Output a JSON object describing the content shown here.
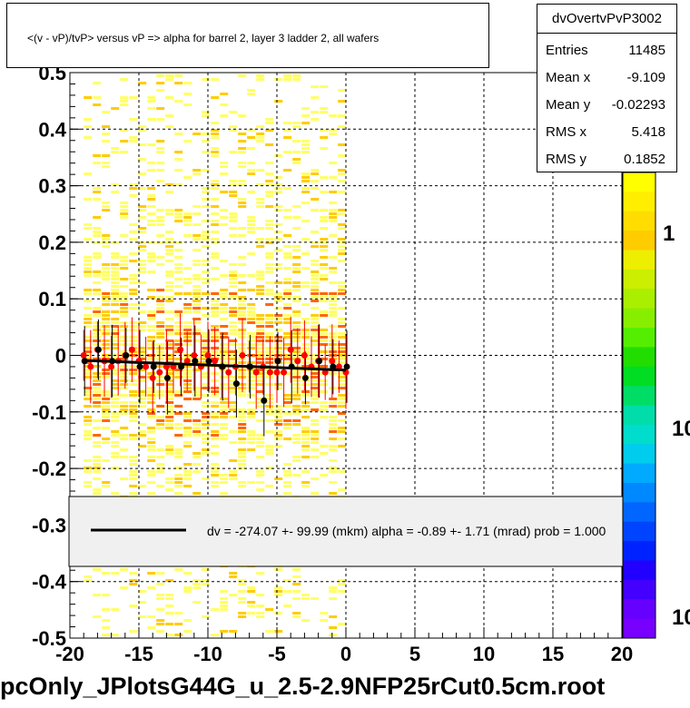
{
  "title": "<(v - vP)/tvP> versus   vP => alpha for barrel 2, layer 3 ladder 2, all wafers",
  "footer_title": "pcOnly_JPlotsG44G_u_2.5-2.9NFP25rCut0.5cm.root",
  "stats": {
    "name": "dvOvertvPvP3002",
    "rows": [
      {
        "key": "Entries",
        "value": "11485"
      },
      {
        "key": "Mean x",
        "value": "-9.109"
      },
      {
        "key": "Mean y",
        "value": "-0.02293"
      },
      {
        "key": "RMS x",
        "value": "5.418"
      },
      {
        "key": "RMS y",
        "value": "0.1852"
      }
    ]
  },
  "legend": {
    "text": "dv = -274.07 +- 99.99 (mkm) alpha =   -0.89 +-   1.71 (mrad) prob = 1.000"
  },
  "colors": {
    "heat_low": "#ffff66",
    "heat_mid": "#ffcc00",
    "heat_high": "#ff6600",
    "red_markers": "#ff0000",
    "black_markers": "#000000",
    "fit_line": "#000000"
  },
  "chart_data": {
    "type": "scatter",
    "background": "heatmap (2D histogram, log color scale)",
    "xlim": [
      -20,
      20
    ],
    "ylim": [
      -0.5,
      0.5
    ],
    "x_ticks": [
      "-20",
      "-15",
      "-10",
      "-5",
      "0",
      "5",
      "10",
      "15",
      "20"
    ],
    "y_ticks": [
      "-0.5",
      "-0.4",
      "-0.3",
      "-0.2",
      "-0.1",
      "0",
      "0.1",
      "0.2",
      "0.3",
      "0.4",
      "0.5"
    ],
    "grid": true,
    "heatmap_x_range": [
      -19,
      0
    ],
    "colorbar_labels": [
      "1",
      "10",
      "10"
    ],
    "series": [
      {
        "marker": "red",
        "x": [
          -19,
          -18.5,
          -18,
          -17.5,
          -17,
          -16.5,
          -16,
          -15.5,
          -15,
          -14.5,
          -14,
          -13.5,
          -13,
          -12.5,
          -12,
          -11.5,
          -11,
          -10.5,
          -10,
          -9.5,
          -9,
          -8.5,
          -8,
          -7.5,
          -7,
          -6.5,
          -6,
          -5.5,
          -5,
          -4.5,
          -4,
          -3.5,
          -3,
          -2.5,
          -2,
          -1.5,
          -1,
          -0.5,
          0
        ],
        "y": [
          0.0,
          -0.02,
          0.01,
          -0.01,
          -0.02,
          -0.01,
          0.0,
          0.01,
          -0.01,
          -0.02,
          -0.04,
          -0.03,
          -0.02,
          -0.02,
          0.01,
          -0.01,
          0.0,
          -0.02,
          0.0,
          -0.01,
          -0.02,
          -0.03,
          -0.02,
          0.0,
          -0.02,
          -0.03,
          -0.02,
          -0.03,
          -0.03,
          -0.03,
          0.01,
          -0.01,
          0.0,
          -0.02,
          -0.01,
          -0.03,
          -0.01,
          -0.02,
          -0.03
        ]
      },
      {
        "marker": "black",
        "x": [
          -19,
          -18,
          -17,
          -16,
          -15,
          -14,
          -13,
          -12,
          -11,
          -10,
          -9,
          -8,
          -7,
          -6,
          -5,
          -4,
          -3,
          -2,
          -1,
          0
        ],
        "y": [
          -0.01,
          0.01,
          -0.01,
          0.0,
          -0.02,
          -0.02,
          -0.04,
          -0.02,
          -0.01,
          -0.01,
          -0.02,
          -0.05,
          -0.02,
          -0.08,
          -0.01,
          -0.02,
          -0.04,
          -0.01,
          -0.02,
          -0.02
        ]
      }
    ],
    "fit_line": {
      "x": [
        -19,
        0
      ],
      "y": [
        -0.009,
        -0.026
      ]
    }
  }
}
